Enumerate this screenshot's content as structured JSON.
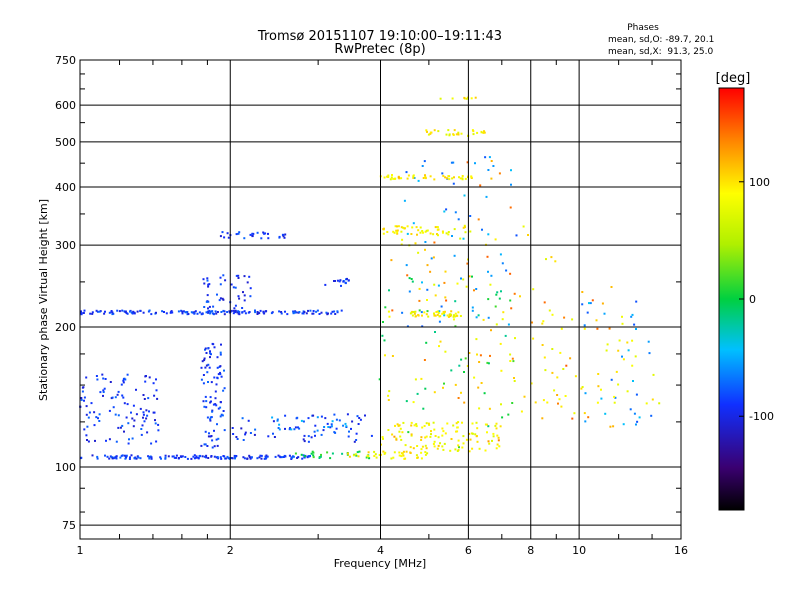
{
  "chart_data": {
    "type": "scatter",
    "title": "Tromsø 20151107 19:10:00–19:11:43",
    "subtitle": "RwPretec (8p)",
    "xlabel": "Frequency [MHz]",
    "ylabel": "Stationary phase Virtual Height [km]",
    "x_scale": "log",
    "y_scale": "log",
    "xlim": [
      1,
      16
    ],
    "ylim": [
      70,
      750
    ],
    "x_ticks": [
      1,
      2,
      4,
      6,
      8,
      10,
      16
    ],
    "y_ticks": [
      75,
      100,
      200,
      300,
      400,
      500,
      600,
      750
    ],
    "grid": true,
    "info": {
      "heading": "Phases",
      "line_o": "mean, sd,O: -89.7, 20.1",
      "line_x": "mean, sd,X:  91.3, 25.0"
    },
    "colorbar": {
      "label": "[deg]",
      "range": [
        -180,
        180
      ],
      "ticks": [
        100,
        0,
        -100
      ],
      "tick_labels": [
        "100",
        "0",
        "-100"
      ]
    },
    "series": [
      {
        "phase": -90,
        "clusters": [
          {
            "x": [
              1.0,
              1.95
            ],
            "y": [
              104,
              106
            ],
            "n": 90
          },
          {
            "x": [
              1.95,
              2.9
            ],
            "y": [
              104,
              106
            ],
            "n": 60
          },
          {
            "x": [
              1.0,
              1.95
            ],
            "y": [
              213,
              217
            ],
            "n": 90
          },
          {
            "x": [
              1.95,
              3.4
            ],
            "y": [
              213,
              217
            ],
            "n": 70
          },
          {
            "x": [
              1.0,
              1.45
            ],
            "y": [
              112,
              160
            ],
            "n": 110
          },
          {
            "x": [
              1.75,
              1.95
            ],
            "y": [
              110,
              185
            ],
            "n": 90
          },
          {
            "x": [
              1.75,
              2.2
            ],
            "y": [
              215,
              260
            ],
            "n": 50
          },
          {
            "x": [
              1.9,
              2.6
            ],
            "y": [
              310,
              320
            ],
            "n": 30
          },
          {
            "x": [
              2.0,
              3.9
            ],
            "y": [
              113,
              130
            ],
            "n": 60
          },
          {
            "x": [
              3.1,
              3.5
            ],
            "y": [
              245,
              255
            ],
            "n": 15
          }
        ]
      },
      {
        "phase": -60,
        "clusters": [
          {
            "x": [
              2.4,
              3.6
            ],
            "y": [
              118,
              128
            ],
            "n": 25
          },
          {
            "x": [
              4.4,
              7.5
            ],
            "y": [
              200,
              470
            ],
            "n": 60
          },
          {
            "x": [
              10.0,
              14.0
            ],
            "y": [
              120,
              230
            ],
            "n": 30
          }
        ]
      },
      {
        "phase": 0,
        "clusters": [
          {
            "x": [
              2.7,
              3.8
            ],
            "y": [
              104,
              108
            ],
            "n": 25
          },
          {
            "x": [
              3.8,
              7.5
            ],
            "y": [
              110,
              260
            ],
            "n": 45
          }
        ]
      },
      {
        "phase": 90,
        "clusters": [
          {
            "x": [
              3.4,
              5.0
            ],
            "y": [
              104,
              108
            ],
            "n": 40
          },
          {
            "x": [
              4.0,
              7.0
            ],
            "y": [
              108,
              125
            ],
            "n": 110
          },
          {
            "x": [
              4.6,
              5.8
            ],
            "y": [
              210,
              216
            ],
            "n": 40
          },
          {
            "x": [
              4.0,
              6.2
            ],
            "y": [
              315,
              330
            ],
            "n": 50
          },
          {
            "x": [
              4.0,
              6.2
            ],
            "y": [
              415,
              425
            ],
            "n": 45
          },
          {
            "x": [
              4.8,
              6.5
            ],
            "y": [
              515,
              530
            ],
            "n": 30
          },
          {
            "x": [
              5.2,
              6.3
            ],
            "y": [
              618,
              625
            ],
            "n": 8
          },
          {
            "x": [
              4.0,
              9.0
            ],
            "y": [
              130,
              330
            ],
            "n": 80
          },
          {
            "x": [
              8.2,
              14.5
            ],
            "y": [
              130,
              220
            ],
            "n": 45
          }
        ]
      },
      {
        "phase": 130,
        "clusters": [
          {
            "x": [
              4.2,
              7.5
            ],
            "y": [
              110,
              460
            ],
            "n": 40
          },
          {
            "x": [
              8.0,
              12.0
            ],
            "y": [
              120,
              260
            ],
            "n": 20
          }
        ]
      }
    ]
  }
}
